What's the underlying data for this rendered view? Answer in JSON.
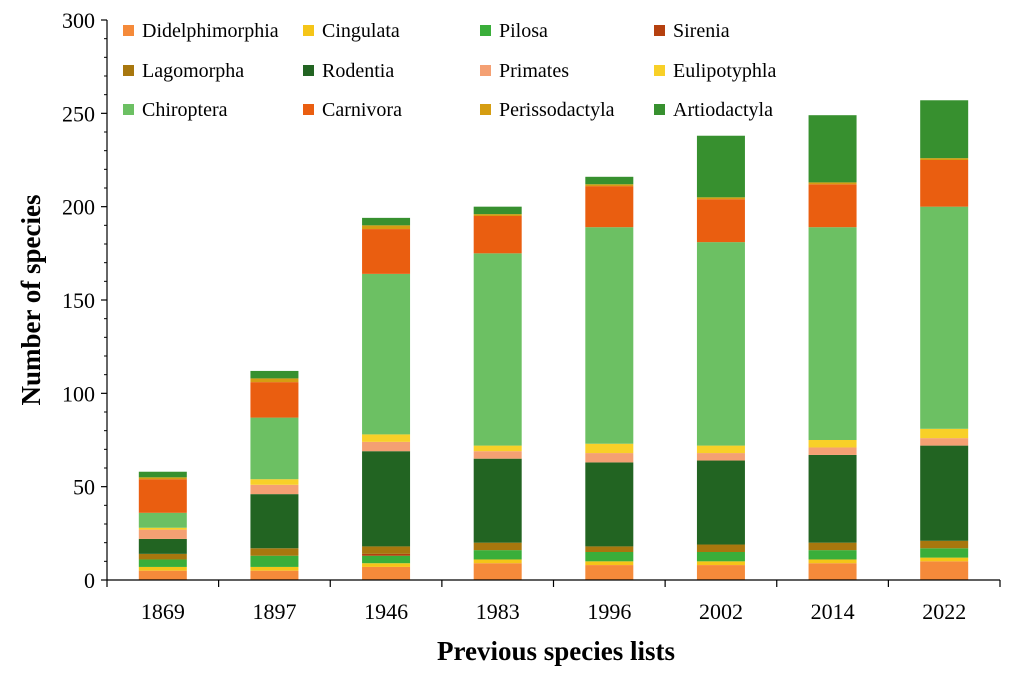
{
  "chart_data": {
    "type": "bar",
    "stacked": true,
    "categories": [
      "1869",
      "1897",
      "1946",
      "1983",
      "1996",
      "2002",
      "2014",
      "2022"
    ],
    "xlabel": "Previous species lists",
    "ylabel": "Number of species",
    "ylim": [
      0,
      300
    ],
    "yticks": [
      0,
      50,
      100,
      150,
      200,
      250,
      300
    ],
    "grid": false,
    "legend_position": "top",
    "series": [
      {
        "name": "Didelphimorphia",
        "color": "#F58A3A",
        "values": [
          5,
          5,
          7,
          9,
          8,
          8,
          9,
          10
        ]
      },
      {
        "name": "Cingulata",
        "color": "#F5C518",
        "values": [
          2,
          2,
          2,
          2,
          2,
          2,
          2,
          2
        ]
      },
      {
        "name": "Pilosa",
        "color": "#3AAE3A",
        "values": [
          4,
          6,
          4,
          5,
          5,
          5,
          5,
          5
        ]
      },
      {
        "name": "Sirenia",
        "color": "#B5400F",
        "values": [
          0,
          0,
          1,
          0,
          0,
          0,
          0,
          0
        ]
      },
      {
        "name": "Lagomorpha",
        "color": "#A8770E",
        "values": [
          3,
          4,
          4,
          4,
          3,
          4,
          4,
          4
        ]
      },
      {
        "name": "Rodentia",
        "color": "#226422",
        "values": [
          8,
          29,
          51,
          45,
          45,
          45,
          47,
          51
        ]
      },
      {
        "name": "Primates",
        "color": "#F4A073",
        "values": [
          5,
          5,
          5,
          4,
          5,
          4,
          4,
          4
        ]
      },
      {
        "name": "Eulipotyphla",
        "color": "#F8D028",
        "values": [
          1,
          3,
          4,
          3,
          5,
          4,
          4,
          5
        ]
      },
      {
        "name": "Chiroptera",
        "color": "#6CC063",
        "values": [
          8,
          33,
          86,
          103,
          116,
          109,
          114,
          119
        ]
      },
      {
        "name": "Carnivora",
        "color": "#EA5E10",
        "values": [
          18,
          19,
          24,
          20,
          22,
          23,
          23,
          25
        ]
      },
      {
        "name": "Perissodactyla",
        "color": "#D59D12",
        "values": [
          1,
          2,
          2,
          1,
          1,
          1,
          1,
          1
        ]
      },
      {
        "name": "Artiodactyla",
        "color": "#37902F",
        "values": [
          3,
          4,
          4,
          4,
          4,
          33,
          36,
          31
        ]
      }
    ]
  }
}
